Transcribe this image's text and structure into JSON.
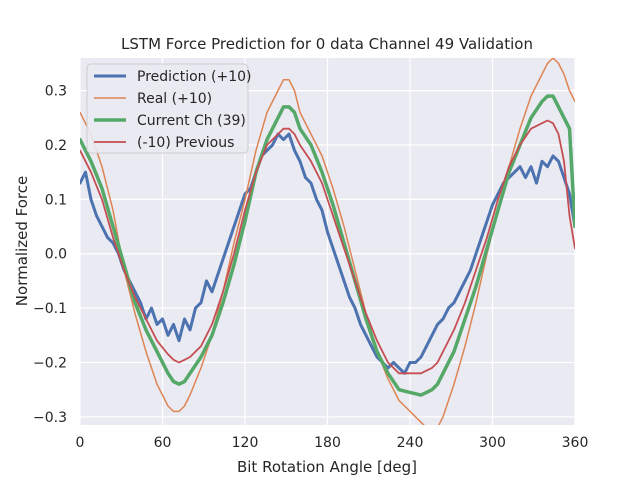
{
  "chart_data": {
    "type": "line",
    "title": "LSTM Force Prediction for 0 data Channel 49 Validation",
    "xlabel": "Bit Rotation Angle [deg]",
    "ylabel": "Normalized Force",
    "xlim": [
      0,
      360
    ],
    "ylim": [
      -0.315,
      0.36
    ],
    "xticks": [
      0,
      60,
      120,
      180,
      240,
      300,
      360
    ],
    "yticks": [
      -0.3,
      -0.2,
      -0.1,
      0.0,
      0.1,
      0.2,
      0.3
    ],
    "ytick_labels": [
      "−0.3",
      "−0.2",
      "−0.1",
      "0.0",
      "0.1",
      "0.2",
      "0.3"
    ],
    "grid": true,
    "legend_position": "top-left",
    "series": [
      {
        "name": "Prediction (+10)",
        "color": "#4c72b0",
        "width": 3,
        "x": [
          0,
          4,
          8,
          12,
          16,
          20,
          24,
          28,
          32,
          36,
          40,
          44,
          48,
          52,
          56,
          60,
          64,
          68,
          72,
          76,
          80,
          84,
          88,
          92,
          96,
          100,
          104,
          108,
          112,
          116,
          120,
          124,
          128,
          132,
          136,
          140,
          144,
          148,
          152,
          156,
          160,
          164,
          168,
          172,
          176,
          180,
          184,
          188,
          192,
          196,
          200,
          204,
          208,
          212,
          216,
          220,
          224,
          228,
          232,
          236,
          240,
          244,
          248,
          252,
          256,
          260,
          264,
          268,
          272,
          276,
          280,
          284,
          288,
          292,
          296,
          300,
          304,
          308,
          312,
          316,
          320,
          324,
          328,
          332,
          336,
          340,
          344,
          348,
          352,
          356,
          360
        ],
        "values": [
          0.13,
          0.15,
          0.1,
          0.07,
          0.05,
          0.03,
          0.02,
          0.0,
          -0.03,
          -0.05,
          -0.07,
          -0.09,
          -0.12,
          -0.1,
          -0.13,
          -0.12,
          -0.15,
          -0.13,
          -0.16,
          -0.12,
          -0.14,
          -0.1,
          -0.09,
          -0.05,
          -0.07,
          -0.04,
          -0.01,
          0.02,
          0.05,
          0.08,
          0.11,
          0.12,
          0.15,
          0.18,
          0.19,
          0.2,
          0.22,
          0.21,
          0.22,
          0.19,
          0.17,
          0.14,
          0.13,
          0.1,
          0.08,
          0.04,
          0.01,
          -0.02,
          -0.05,
          -0.08,
          -0.1,
          -0.13,
          -0.15,
          -0.17,
          -0.19,
          -0.2,
          -0.21,
          -0.2,
          -0.21,
          -0.22,
          -0.2,
          -0.2,
          -0.19,
          -0.17,
          -0.15,
          -0.13,
          -0.12,
          -0.1,
          -0.09,
          -0.07,
          -0.05,
          -0.03,
          0.0,
          0.03,
          0.06,
          0.09,
          0.11,
          0.13,
          0.14,
          0.15,
          0.16,
          0.14,
          0.16,
          0.13,
          0.17,
          0.16,
          0.18,
          0.17,
          0.14,
          0.11,
          0.05
        ]
      },
      {
        "name": "Real (+10)",
        "color": "#dd8452",
        "width": 1.5,
        "x": [
          0,
          8,
          16,
          24,
          32,
          40,
          48,
          56,
          64,
          68,
          72,
          76,
          80,
          88,
          96,
          104,
          112,
          120,
          128,
          136,
          144,
          148,
          152,
          156,
          160,
          168,
          176,
          184,
          192,
          200,
          208,
          216,
          224,
          232,
          240,
          248,
          252,
          256,
          260,
          264,
          272,
          280,
          288,
          296,
          304,
          312,
          320,
          328,
          336,
          340,
          344,
          348,
          352,
          356,
          360
        ],
        "values": [
          0.26,
          0.22,
          0.16,
          0.08,
          -0.03,
          -0.11,
          -0.18,
          -0.24,
          -0.28,
          -0.29,
          -0.29,
          -0.28,
          -0.26,
          -0.21,
          -0.15,
          -0.07,
          0.02,
          0.1,
          0.19,
          0.26,
          0.3,
          0.32,
          0.32,
          0.3,
          0.26,
          0.22,
          0.18,
          0.12,
          0.05,
          -0.03,
          -0.11,
          -0.18,
          -0.23,
          -0.27,
          -0.29,
          -0.31,
          -0.32,
          -0.32,
          -0.32,
          -0.3,
          -0.24,
          -0.17,
          -0.09,
          0.0,
          0.08,
          0.16,
          0.23,
          0.29,
          0.33,
          0.35,
          0.36,
          0.35,
          0.33,
          0.3,
          0.28
        ]
      },
      {
        "name": "Current Ch (39)",
        "color": "#55a868",
        "width": 3.5,
        "x": [
          0,
          8,
          16,
          24,
          32,
          40,
          48,
          56,
          64,
          68,
          72,
          76,
          80,
          88,
          96,
          104,
          112,
          120,
          128,
          136,
          144,
          148,
          152,
          156,
          160,
          168,
          176,
          184,
          192,
          200,
          208,
          216,
          224,
          232,
          240,
          248,
          252,
          256,
          260,
          264,
          272,
          280,
          288,
          296,
          304,
          312,
          320,
          328,
          336,
          340,
          344,
          348,
          352,
          356,
          360
        ],
        "values": [
          0.21,
          0.17,
          0.12,
          0.05,
          -0.02,
          -0.09,
          -0.14,
          -0.18,
          -0.22,
          -0.235,
          -0.24,
          -0.235,
          -0.22,
          -0.19,
          -0.15,
          -0.09,
          -0.02,
          0.06,
          0.15,
          0.21,
          0.25,
          0.27,
          0.27,
          0.26,
          0.23,
          0.2,
          0.15,
          0.09,
          0.02,
          -0.05,
          -0.12,
          -0.18,
          -0.22,
          -0.25,
          -0.255,
          -0.26,
          -0.255,
          -0.25,
          -0.24,
          -0.22,
          -0.18,
          -0.12,
          -0.06,
          0.01,
          0.08,
          0.15,
          0.2,
          0.25,
          0.28,
          0.29,
          0.29,
          0.27,
          0.25,
          0.23,
          0.05
        ]
      },
      {
        "name": "(-10) Previous",
        "color": "#c44e52",
        "width": 1.8,
        "x": [
          0,
          8,
          16,
          24,
          32,
          40,
          48,
          56,
          64,
          68,
          72,
          76,
          80,
          88,
          96,
          104,
          112,
          120,
          128,
          136,
          144,
          148,
          152,
          156,
          160,
          168,
          176,
          184,
          192,
          200,
          208,
          216,
          224,
          232,
          240,
          248,
          252,
          256,
          260,
          264,
          272,
          280,
          288,
          296,
          304,
          312,
          320,
          328,
          336,
          340,
          344,
          348,
          352,
          356,
          360
        ],
        "values": [
          0.19,
          0.15,
          0.1,
          0.03,
          -0.03,
          -0.08,
          -0.12,
          -0.16,
          -0.185,
          -0.195,
          -0.2,
          -0.195,
          -0.19,
          -0.17,
          -0.13,
          -0.07,
          0.0,
          0.08,
          0.15,
          0.2,
          0.22,
          0.23,
          0.23,
          0.22,
          0.2,
          0.17,
          0.13,
          0.07,
          0.01,
          -0.05,
          -0.11,
          -0.16,
          -0.2,
          -0.22,
          -0.22,
          -0.22,
          -0.215,
          -0.21,
          -0.2,
          -0.18,
          -0.14,
          -0.09,
          -0.03,
          0.03,
          0.1,
          0.16,
          0.2,
          0.23,
          0.24,
          0.245,
          0.24,
          0.22,
          0.17,
          0.07,
          0.01
        ]
      }
    ]
  }
}
